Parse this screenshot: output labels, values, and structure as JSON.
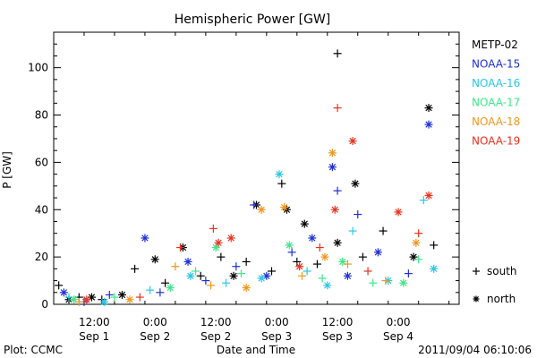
{
  "chart_data": {
    "type": "scatter",
    "title": "Hemispheric Power [GW]",
    "xlabel": "Date and Time",
    "ylabel": "P [GW]",
    "ylim": [
      0,
      115
    ],
    "xlim": [
      "2011-09-01 04:00",
      "2011-09-04 12:00"
    ],
    "y_ticks": [
      0,
      20,
      40,
      60,
      80,
      100
    ],
    "x_ticks": [
      {
        "time": "2011-09-01 12:00",
        "line1": "12:00",
        "line2": "Sep 1"
      },
      {
        "time": "2011-09-02 00:00",
        "line1": "0:00",
        "line2": "Sep 2"
      },
      {
        "time": "2011-09-02 12:00",
        "line1": "12:00",
        "line2": "Sep 2"
      },
      {
        "time": "2011-09-03 00:00",
        "line1": "0:00",
        "line2": "Sep 3"
      },
      {
        "time": "2011-09-03 12:00",
        "line1": "12:00",
        "line2": "Sep 3"
      },
      {
        "time": "2011-09-04 00:00",
        "line1": "0:00",
        "line2": "Sep 4"
      }
    ],
    "grid": false,
    "legend_placement": "right",
    "marker_legend": [
      {
        "symbol": "+",
        "label": "south"
      },
      {
        "symbol": "*",
        "label": "north"
      }
    ],
    "footer_left": "Plot: CCMC",
    "footer_right": "2011/09/04 06:10:06",
    "series": [
      {
        "name": "METP-02",
        "color": "#000000",
        "points": [
          {
            "x": "2011-09-01 05:00",
            "y": 8,
            "m": "+"
          },
          {
            "x": "2011-09-01 07:00",
            "y": 2,
            "m": "*"
          },
          {
            "x": "2011-09-01 09:00",
            "y": 3,
            "m": "+"
          },
          {
            "x": "2011-09-01 11:30",
            "y": 3,
            "m": "*"
          },
          {
            "x": "2011-09-01 13:30",
            "y": 2,
            "m": "+"
          },
          {
            "x": "2011-09-01 17:30",
            "y": 4,
            "m": "*"
          },
          {
            "x": "2011-09-01 20:00",
            "y": 15,
            "m": "+"
          },
          {
            "x": "2011-09-02 00:00",
            "y": 19,
            "m": "*"
          },
          {
            "x": "2011-09-02 02:00",
            "y": 9,
            "m": "+"
          },
          {
            "x": "2011-09-02 05:30",
            "y": 24,
            "m": "*"
          },
          {
            "x": "2011-09-02 09:00",
            "y": 12,
            "m": "+"
          },
          {
            "x": "2011-09-02 13:00",
            "y": 20,
            "m": "+"
          },
          {
            "x": "2011-09-02 15:30",
            "y": 12,
            "m": "*"
          },
          {
            "x": "2011-09-02 18:00",
            "y": 18,
            "m": "+"
          },
          {
            "x": "2011-09-02 20:00",
            "y": 42,
            "m": "*"
          },
          {
            "x": "2011-09-02 23:00",
            "y": 14,
            "m": "+"
          },
          {
            "x": "2011-09-03 01:00",
            "y": 51,
            "m": "+"
          },
          {
            "x": "2011-09-03 02:00",
            "y": 40,
            "m": "*"
          },
          {
            "x": "2011-09-03 04:00",
            "y": 18,
            "m": "+"
          },
          {
            "x": "2011-09-03 05:30",
            "y": 34,
            "m": "*"
          },
          {
            "x": "2011-09-03 08:00",
            "y": 17,
            "m": "+"
          },
          {
            "x": "2011-09-03 12:00",
            "y": 106,
            "m": "+"
          },
          {
            "x": "2011-09-03 12:00",
            "y": 26,
            "m": "*"
          },
          {
            "x": "2011-09-03 15:30",
            "y": 51,
            "m": "*"
          },
          {
            "x": "2011-09-03 17:00",
            "y": 20,
            "m": "+"
          },
          {
            "x": "2011-09-03 21:00",
            "y": 31,
            "m": "+"
          },
          {
            "x": "2011-09-04 03:00",
            "y": 20,
            "m": "*"
          },
          {
            "x": "2011-09-04 06:00",
            "y": 83,
            "m": "*"
          },
          {
            "x": "2011-09-04 07:00",
            "y": 25,
            "m": "+"
          }
        ]
      },
      {
        "name": "NOAA-15",
        "color": "#1f2fd8",
        "points": [
          {
            "x": "2011-09-01 06:00",
            "y": 5,
            "m": "*"
          },
          {
            "x": "2011-09-01 10:00",
            "y": 1,
            "m": "+"
          },
          {
            "x": "2011-09-01 15:00",
            "y": 4,
            "m": "+"
          },
          {
            "x": "2011-09-01 22:00",
            "y": 28,
            "m": "*"
          },
          {
            "x": "2011-09-02 01:00",
            "y": 5,
            "m": "+"
          },
          {
            "x": "2011-09-02 06:30",
            "y": 18,
            "m": "*"
          },
          {
            "x": "2011-09-02 10:00",
            "y": 10,
            "m": "+"
          },
          {
            "x": "2011-09-02 16:00",
            "y": 16,
            "m": "+"
          },
          {
            "x": "2011-09-02 19:30",
            "y": 42,
            "m": "+"
          },
          {
            "x": "2011-09-02 22:00",
            "y": 12,
            "m": "*"
          },
          {
            "x": "2011-09-03 03:00",
            "y": 22,
            "m": "+"
          },
          {
            "x": "2011-09-03 07:00",
            "y": 28,
            "m": "*"
          },
          {
            "x": "2011-09-03 11:00",
            "y": 58,
            "m": "*"
          },
          {
            "x": "2011-09-03 12:00",
            "y": 48,
            "m": "+"
          },
          {
            "x": "2011-09-03 14:00",
            "y": 12,
            "m": "*"
          },
          {
            "x": "2011-09-03 16:00",
            "y": 38,
            "m": "+"
          },
          {
            "x": "2011-09-03 20:00",
            "y": 22,
            "m": "*"
          },
          {
            "x": "2011-09-04 02:00",
            "y": 13,
            "m": "+"
          },
          {
            "x": "2011-09-04 06:00",
            "y": 76,
            "m": "*"
          }
        ]
      },
      {
        "name": "NOAA-16",
        "color": "#28c8e6",
        "points": [
          {
            "x": "2011-09-01 07:00",
            "y": 3,
            "m": "+"
          },
          {
            "x": "2011-09-01 14:00",
            "y": 1,
            "m": "*"
          },
          {
            "x": "2011-09-01 23:00",
            "y": 6,
            "m": "+"
          },
          {
            "x": "2011-09-02 07:00",
            "y": 12,
            "m": "*"
          },
          {
            "x": "2011-09-02 14:00",
            "y": 9,
            "m": "+"
          },
          {
            "x": "2011-09-02 21:00",
            "y": 11,
            "m": "*"
          },
          {
            "x": "2011-09-03 00:30",
            "y": 55,
            "m": "*"
          },
          {
            "x": "2011-09-03 06:00",
            "y": 14,
            "m": "+"
          },
          {
            "x": "2011-09-03 10:00",
            "y": 8,
            "m": "*"
          },
          {
            "x": "2011-09-03 15:00",
            "y": 31,
            "m": "+"
          },
          {
            "x": "2011-09-03 22:00",
            "y": 10,
            "m": "*"
          },
          {
            "x": "2011-09-04 05:00",
            "y": 44,
            "m": "+"
          },
          {
            "x": "2011-09-04 07:00",
            "y": 15,
            "m": "*"
          }
        ]
      },
      {
        "name": "NOAA-17",
        "color": "#3ee68a",
        "points": [
          {
            "x": "2011-09-01 08:00",
            "y": 2,
            "m": "*"
          },
          {
            "x": "2011-09-01 16:00",
            "y": 3,
            "m": "+"
          },
          {
            "x": "2011-09-02 03:00",
            "y": 7,
            "m": "*"
          },
          {
            "x": "2011-09-02 08:00",
            "y": 14,
            "m": "+"
          },
          {
            "x": "2011-09-02 12:00",
            "y": 24,
            "m": "*"
          },
          {
            "x": "2011-09-02 17:00",
            "y": 13,
            "m": "+"
          },
          {
            "x": "2011-09-03 02:30",
            "y": 25,
            "m": "*"
          },
          {
            "x": "2011-09-03 09:00",
            "y": 11,
            "m": "+"
          },
          {
            "x": "2011-09-03 13:00",
            "y": 18,
            "m": "*"
          },
          {
            "x": "2011-09-03 19:00",
            "y": 9,
            "m": "+"
          },
          {
            "x": "2011-09-04 01:00",
            "y": 9,
            "m": "*"
          },
          {
            "x": "2011-09-04 04:00",
            "y": 19,
            "m": "+"
          }
        ]
      },
      {
        "name": "NOAA-18",
        "color": "#f0961e",
        "points": [
          {
            "x": "2011-09-01 09:00",
            "y": 1,
            "m": "+"
          },
          {
            "x": "2011-09-01 19:00",
            "y": 2,
            "m": "*"
          },
          {
            "x": "2011-09-02 04:00",
            "y": 16,
            "m": "+"
          },
          {
            "x": "2011-09-02 11:00",
            "y": 8,
            "m": "+"
          },
          {
            "x": "2011-09-02 18:00",
            "y": 7,
            "m": "*"
          },
          {
            "x": "2011-09-02 21:00",
            "y": 40,
            "m": "*"
          },
          {
            "x": "2011-09-03 01:30",
            "y": 41,
            "m": "*"
          },
          {
            "x": "2011-09-03 05:00",
            "y": 12,
            "m": "+"
          },
          {
            "x": "2011-09-03 09:30",
            "y": 20,
            "m": "*"
          },
          {
            "x": "2011-09-03 11:00",
            "y": 64,
            "m": "*"
          },
          {
            "x": "2011-09-03 14:00",
            "y": 17,
            "m": "+"
          },
          {
            "x": "2011-09-03 21:30",
            "y": 10,
            "m": "+"
          },
          {
            "x": "2011-09-04 03:30",
            "y": 26,
            "m": "*"
          }
        ]
      },
      {
        "name": "NOAA-19",
        "color": "#e8321e",
        "points": [
          {
            "x": "2011-09-01 10:30",
            "y": 2,
            "m": "*"
          },
          {
            "x": "2011-09-01 21:00",
            "y": 3,
            "m": "+"
          },
          {
            "x": "2011-09-02 05:00",
            "y": 24,
            "m": "+"
          },
          {
            "x": "2011-09-02 11:30",
            "y": 32,
            "m": "+"
          },
          {
            "x": "2011-09-02 12:30",
            "y": 26,
            "m": "*"
          },
          {
            "x": "2011-09-02 15:00",
            "y": 28,
            "m": "*"
          },
          {
            "x": "2011-09-03 04:30",
            "y": 16,
            "m": "*"
          },
          {
            "x": "2011-09-03 08:30",
            "y": 24,
            "m": "+"
          },
          {
            "x": "2011-09-03 12:00",
            "y": 83,
            "m": "+"
          },
          {
            "x": "2011-09-03 11:30",
            "y": 40,
            "m": "*"
          },
          {
            "x": "2011-09-03 15:00",
            "y": 69,
            "m": "*"
          },
          {
            "x": "2011-09-03 18:00",
            "y": 14,
            "m": "+"
          },
          {
            "x": "2011-09-04 00:00",
            "y": 39,
            "m": "*"
          },
          {
            "x": "2011-09-04 04:00",
            "y": 30,
            "m": "+"
          },
          {
            "x": "2011-09-04 06:00",
            "y": 46,
            "m": "*"
          }
        ]
      }
    ]
  }
}
